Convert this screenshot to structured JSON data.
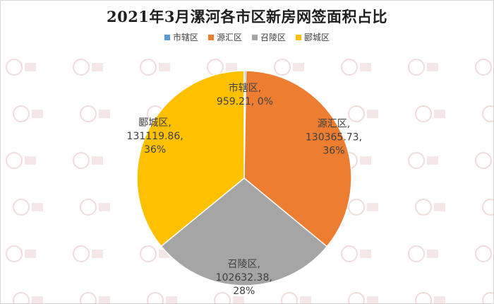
{
  "chart_data": {
    "type": "pie",
    "title": "2021年3月漯河各市区新房网签面积占比",
    "series": [
      {
        "name": "",
        "categories": [
          "市辖区",
          "源汇区",
          "召陵区",
          "郾城区"
        ],
        "values": [
          959.21,
          130365.73,
          102632.38,
          131119.86
        ],
        "percent_labels": [
          "0%",
          "36%",
          "28%",
          "36%"
        ],
        "data_labels": [
          [
            "市辖区,",
            "959.21, 0%"
          ],
          [
            "源汇区,",
            "130365.73,",
            "36%"
          ],
          [
            "召陵区,",
            "102632.38,",
            "28%"
          ],
          [
            "郾城区,",
            "131119.86,",
            "36%"
          ]
        ]
      }
    ],
    "legend": {
      "position": "top",
      "entries": [
        "市辖区",
        "源汇区",
        "召陵区",
        "郾城区"
      ]
    },
    "colors": [
      "#5b9bd5",
      "#ed7d31",
      "#a5a5a5",
      "#ffc000"
    ],
    "start_angle_deg": 0,
    "direction": "clockwise"
  },
  "watermark": {
    "description_icon": "logo-watermark-icon"
  }
}
